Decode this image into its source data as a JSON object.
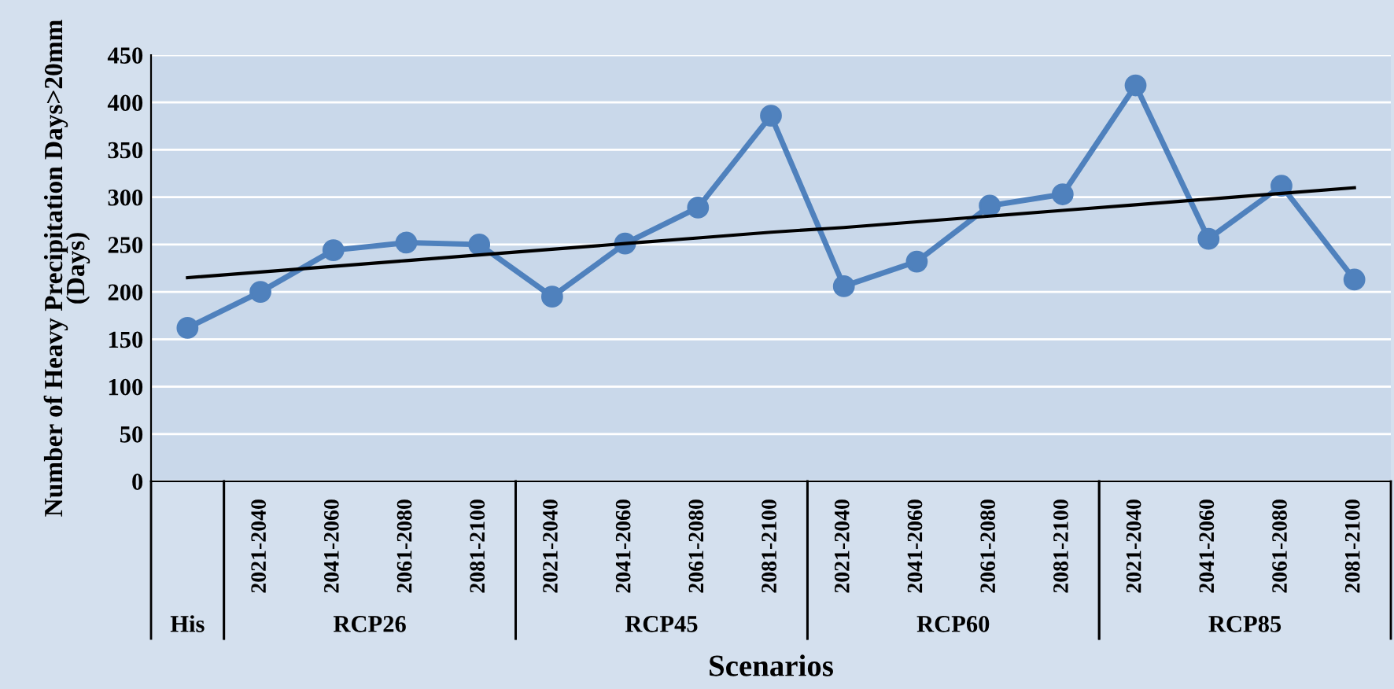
{
  "chart_data": {
    "type": "line",
    "xlabel": "Scenarios",
    "ylabel": "Number of Heavy Precipitation Days>20mm\n(Days)",
    "categories": [
      null,
      "2021-2040",
      "2041-2060",
      "2061-2080",
      "2081-2100",
      "2021-2040",
      "2041-2060",
      "2061-2080",
      "2081-2100",
      "2021-2040",
      "2041-2060",
      "2061-2080",
      "2081-2100",
      "2021-2040",
      "2041-2060",
      "2061-2080",
      "2081-2100"
    ],
    "series": [
      {
        "color": "#4f81bd",
        "marker": "circle",
        "values": [
          162,
          200,
          244,
          252,
          250,
          195,
          251,
          289,
          386,
          206,
          232,
          291,
          303,
          418,
          256,
          312,
          213
        ]
      },
      {
        "color": "#000000",
        "marker": "none",
        "values": [
          215,
          221,
          227,
          233,
          239,
          245,
          251,
          257,
          263,
          268,
          274,
          280,
          286,
          292,
          298,
          304,
          310
        ]
      }
    ],
    "annotations": [
      "His",
      "RCP26",
      "RCP45",
      "RCP60",
      "RCP85"
    ],
    "ylim": [
      0,
      450
    ],
    "yticks": [
      0,
      50,
      100,
      150,
      200,
      250,
      300,
      350,
      400,
      450
    ],
    "grid": "y",
    "line_style": "solid"
  }
}
